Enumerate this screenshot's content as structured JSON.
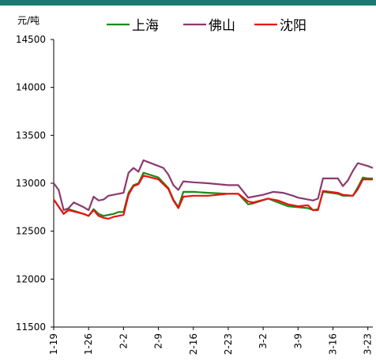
{
  "accent_bar_color": "#1a7a73",
  "chart_data": {
    "type": "line",
    "unit_label": "元/吨",
    "ylim": [
      11500,
      14500
    ],
    "y_ticks": [
      11500,
      12000,
      12500,
      13000,
      13500,
      14000,
      14500
    ],
    "x_ticks": [
      "1-19",
      "1-26",
      "2-2",
      "2-9",
      "2-16",
      "2-23",
      "3-2",
      "3-9",
      "3-16",
      "3-23"
    ],
    "x_tick_index": [
      0,
      7,
      14,
      21,
      28,
      35,
      42,
      49,
      56,
      63
    ],
    "x_count": 64,
    "legend_position": "top",
    "series": [
      {
        "name": "上海",
        "color": "#1a8a1a",
        "values": [
          [
            0,
            12830
          ],
          [
            2,
            12680
          ],
          [
            3,
            12730
          ],
          [
            6,
            12680
          ],
          [
            7,
            12660
          ],
          [
            8,
            12730
          ],
          [
            9,
            12680
          ],
          [
            10,
            12660
          ],
          [
            11,
            12670
          ],
          [
            12,
            12680
          ],
          [
            13,
            12700
          ],
          [
            14,
            12700
          ],
          [
            15,
            12900
          ],
          [
            16,
            12980
          ],
          [
            17,
            13000
          ],
          [
            18,
            13110
          ],
          [
            21,
            13060
          ],
          [
            23,
            12950
          ],
          [
            24,
            12830
          ],
          [
            25,
            12750
          ],
          [
            26,
            12910
          ],
          [
            28,
            12910
          ],
          [
            31,
            12900
          ],
          [
            35,
            12890
          ],
          [
            37,
            12890
          ],
          [
            39,
            12780
          ],
          [
            40,
            12790
          ],
          [
            43,
            12840
          ],
          [
            45,
            12800
          ],
          [
            47,
            12760
          ],
          [
            49,
            12750
          ],
          [
            51,
            12740
          ],
          [
            52,
            12720
          ],
          [
            53,
            12730
          ],
          [
            54,
            12910
          ],
          [
            57,
            12890
          ],
          [
            58,
            12870
          ],
          [
            60,
            12870
          ],
          [
            61,
            12960
          ],
          [
            62,
            13060
          ],
          [
            63,
            13050
          ],
          [
            64,
            13050
          ]
        ]
      },
      {
        "name": "佛山",
        "color": "#8c3a6e",
        "values": [
          [
            0,
            13000
          ],
          [
            1,
            12930
          ],
          [
            2,
            12720
          ],
          [
            3,
            12740
          ],
          [
            4,
            12800
          ],
          [
            6,
            12750
          ],
          [
            7,
            12720
          ],
          [
            8,
            12860
          ],
          [
            9,
            12820
          ],
          [
            10,
            12830
          ],
          [
            11,
            12870
          ],
          [
            13,
            12890
          ],
          [
            14,
            12900
          ],
          [
            15,
            13110
          ],
          [
            16,
            13160
          ],
          [
            17,
            13120
          ],
          [
            18,
            13240
          ],
          [
            19,
            13220
          ],
          [
            21,
            13180
          ],
          [
            22,
            13160
          ],
          [
            23,
            13090
          ],
          [
            24,
            12980
          ],
          [
            25,
            12930
          ],
          [
            26,
            13020
          ],
          [
            28,
            13010
          ],
          [
            31,
            13000
          ],
          [
            35,
            12980
          ],
          [
            37,
            12980
          ],
          [
            39,
            12850
          ],
          [
            40,
            12860
          ],
          [
            42,
            12880
          ],
          [
            44,
            12910
          ],
          [
            46,
            12900
          ],
          [
            48,
            12870
          ],
          [
            49,
            12850
          ],
          [
            51,
            12830
          ],
          [
            52,
            12820
          ],
          [
            53,
            12840
          ],
          [
            54,
            13050
          ],
          [
            57,
            13050
          ],
          [
            58,
            12970
          ],
          [
            59,
            13030
          ],
          [
            60,
            13130
          ],
          [
            61,
            13210
          ],
          [
            63,
            13180
          ],
          [
            64,
            13160
          ]
        ]
      },
      {
        "name": "沈阳",
        "color": "#ee1111",
        "values": [
          [
            0,
            12830
          ],
          [
            2,
            12680
          ],
          [
            3,
            12720
          ],
          [
            6,
            12680
          ],
          [
            7,
            12660
          ],
          [
            8,
            12720
          ],
          [
            9,
            12660
          ],
          [
            10,
            12640
          ],
          [
            11,
            12630
          ],
          [
            12,
            12650
          ],
          [
            13,
            12660
          ],
          [
            14,
            12670
          ],
          [
            15,
            12880
          ],
          [
            16,
            12970
          ],
          [
            17,
            12990
          ],
          [
            18,
            13080
          ],
          [
            21,
            13040
          ],
          [
            23,
            12940
          ],
          [
            24,
            12820
          ],
          [
            25,
            12740
          ],
          [
            26,
            12860
          ],
          [
            28,
            12870
          ],
          [
            31,
            12870
          ],
          [
            35,
            12890
          ],
          [
            37,
            12890
          ],
          [
            39,
            12810
          ],
          [
            40,
            12800
          ],
          [
            43,
            12840
          ],
          [
            45,
            12820
          ],
          [
            47,
            12780
          ],
          [
            49,
            12760
          ],
          [
            51,
            12770
          ],
          [
            52,
            12720
          ],
          [
            53,
            12720
          ],
          [
            54,
            12920
          ],
          [
            57,
            12900
          ],
          [
            58,
            12880
          ],
          [
            60,
            12870
          ],
          [
            61,
            12940
          ],
          [
            62,
            13040
          ],
          [
            63,
            13040
          ],
          [
            64,
            13040
          ]
        ]
      }
    ]
  }
}
